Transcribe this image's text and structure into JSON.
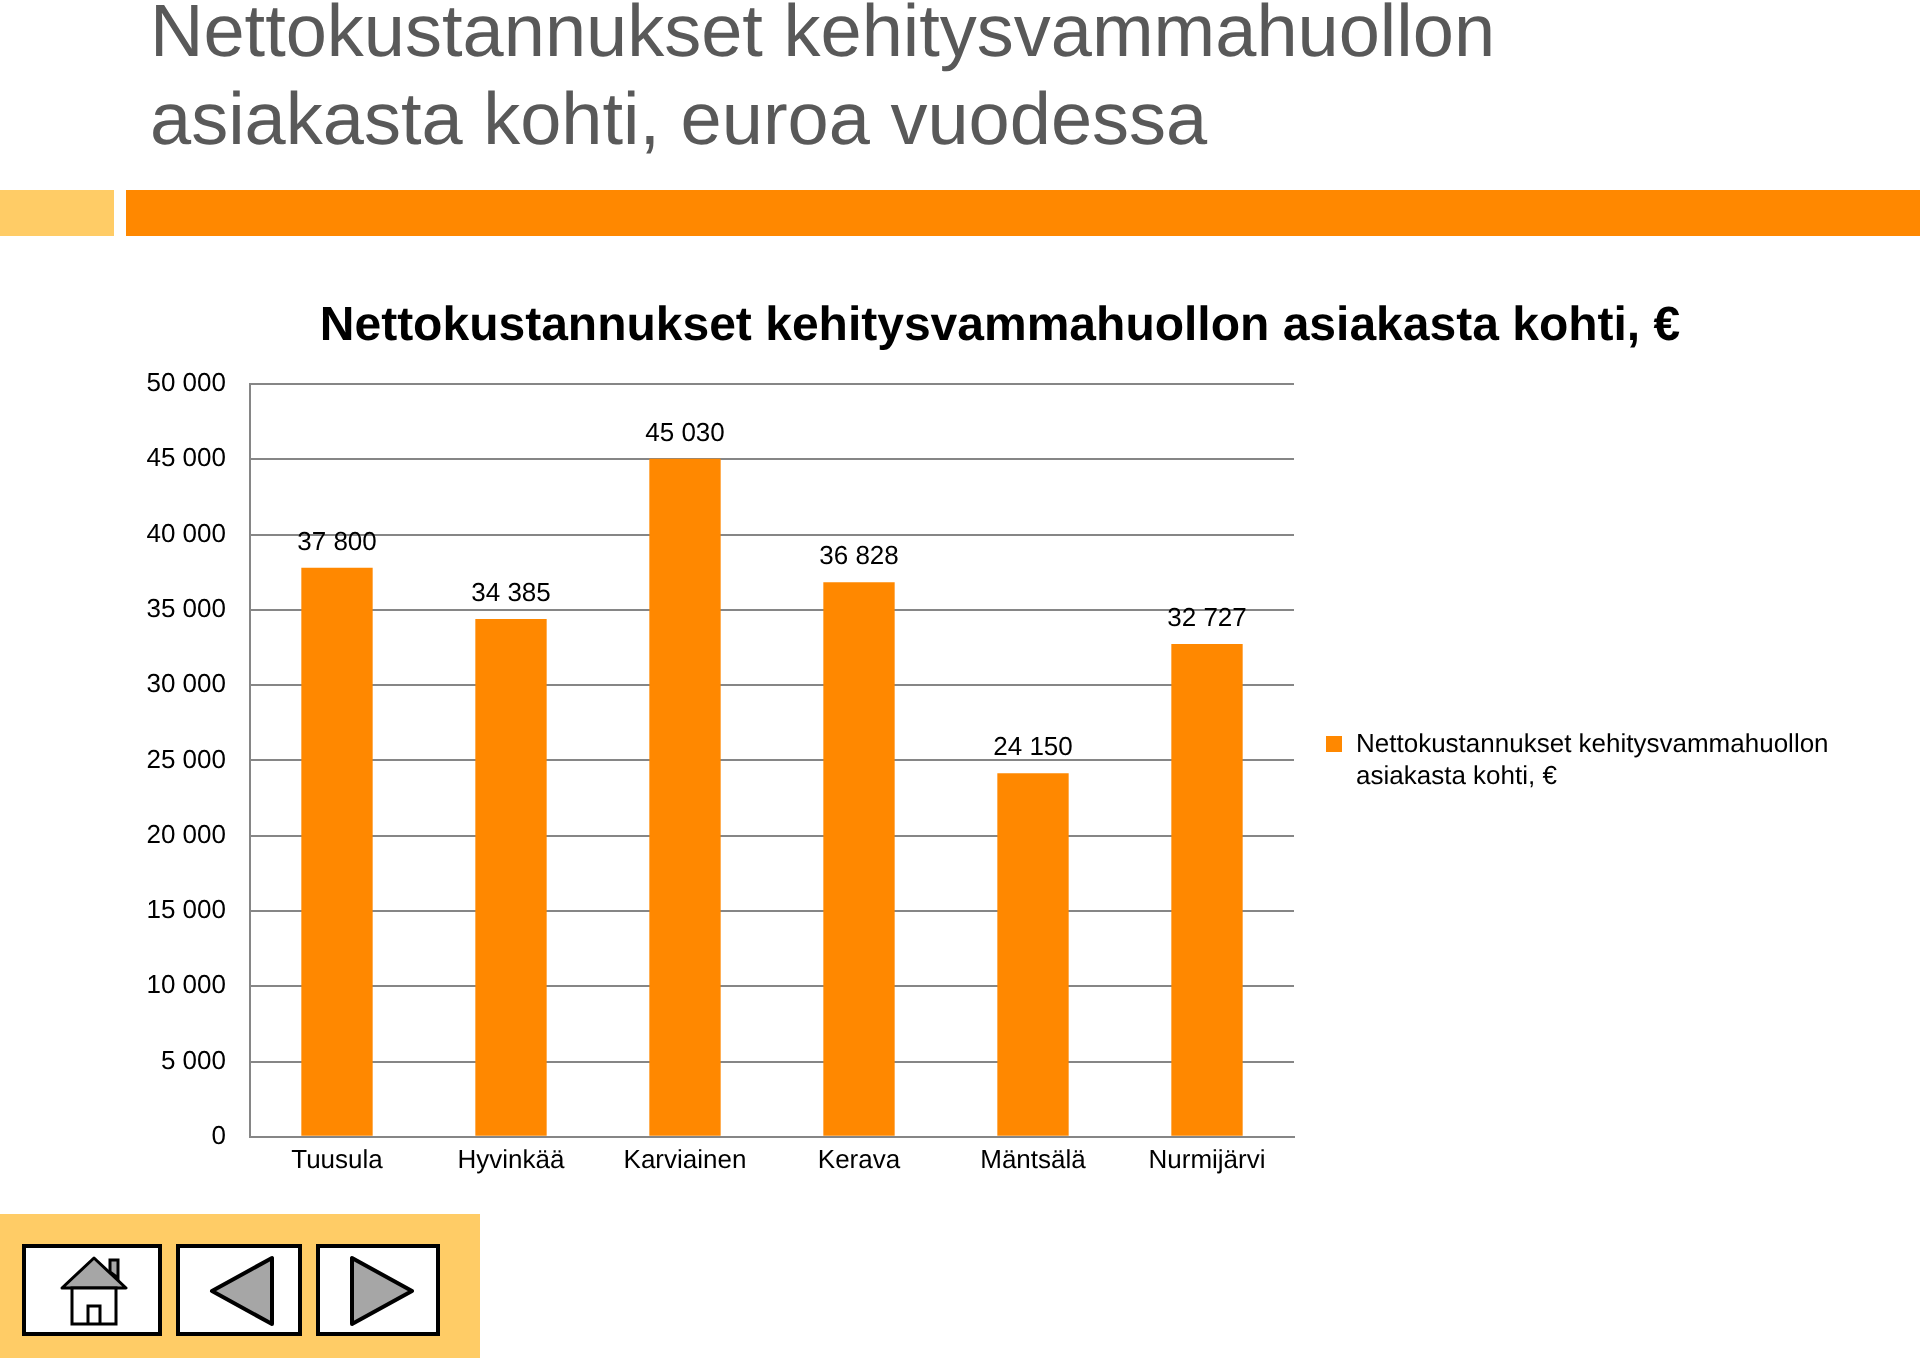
{
  "chart_data": {
    "type": "bar",
    "title": "Nettokustannukset kehitysvammahuollon asiakasta kohti, euroa vuodessa",
    "subtitle": "Nettokustannukset kehitysvammahuollon asiakasta kohti, €",
    "categories": [
      "Tuusula",
      "Hyvinkää",
      "Karviainen",
      "Kerava",
      "Mäntsälä",
      "Nurmijärvi"
    ],
    "series": [
      {
        "name": "Nettokustannukset kehitysvammahuollon asiakasta kohti, €",
        "color": "#ff8800",
        "values": [
          37800,
          34385,
          45030,
          36828,
          24150,
          32727
        ],
        "value_labels": [
          "37 800",
          "34 385",
          "45 030",
          "36 828",
          "24 150",
          "32 727"
        ]
      }
    ],
    "ylim": [
      0,
      50000
    ],
    "yticks": [
      {
        "value": 0,
        "label": "0"
      },
      {
        "value": 5000,
        "label": "5 000"
      },
      {
        "value": 10000,
        "label": "10 000"
      },
      {
        "value": 15000,
        "label": "15 000"
      },
      {
        "value": 20000,
        "label": "20 000"
      },
      {
        "value": 25000,
        "label": "25 000"
      },
      {
        "value": 30000,
        "label": "30 000"
      },
      {
        "value": 35000,
        "label": "35 000"
      },
      {
        "value": 40000,
        "label": "40 000"
      },
      {
        "value": 45000,
        "label": "45 000"
      },
      {
        "value": 50000,
        "label": "50 000"
      }
    ],
    "grid": "y",
    "legend": "right"
  }
}
